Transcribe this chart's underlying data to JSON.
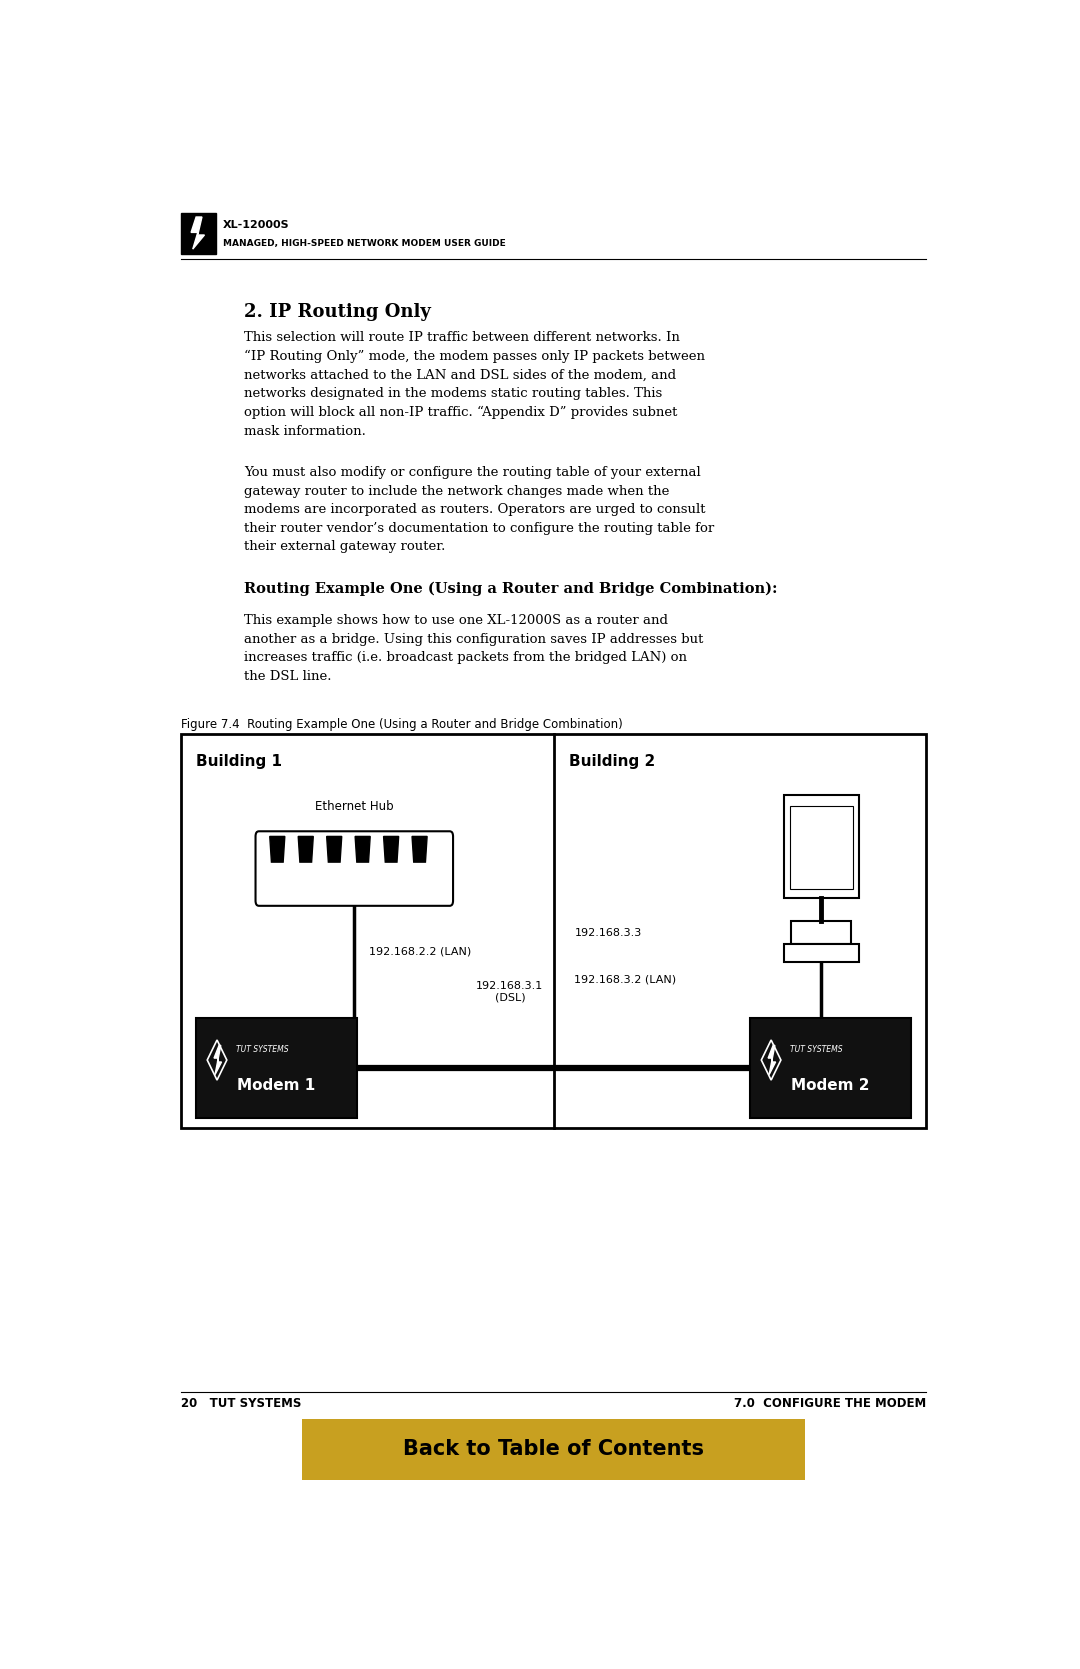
{
  "bg_color": "#ffffff",
  "page_width": 10.8,
  "page_height": 16.69,
  "header_title": "XL-12000S",
  "header_subtitle": "MANAGED, HIGH-SPEED NETWORK MODEM USER GUIDE",
  "section_title": "2. IP Routing Only",
  "para1": "This selection will route IP traffic between different networks. In\n“IP Routing Only” mode, the modem passes only IP packets between\nnetworks attached to the LAN and DSL sides of the modem, and\nnetworks designated in the modems static routing tables. This\noption will block all non-IP traffic. “Appendix D” provides subnet\nmask information.",
  "para2": "You must also modify or configure the routing table of your external\ngateway router to include the network changes made when the\nmodems are incorporated as routers. Operators are urged to consult\ntheir router vendor’s documentation to configure the routing table for\ntheir external gateway router.",
  "subsection_title": "Routing Example One (Using a Router and Bridge Combination):",
  "para3": "This example shows how to use one XL-12000S as a router and\nanother as a bridge. Using this configuration saves IP addresses but\nincreases traffic (i.e. broadcast packets from the bridged LAN) on\nthe DSL line.",
  "fig_caption": "Figure 7.4  Routing Example One (Using a Router and Bridge Combination)",
  "building1_label": "Building 1",
  "building2_label": "Building 2",
  "hub_label": "Ethernet Hub",
  "ip_lan1": "192.168.2.2 (LAN)",
  "ip_dsl": "192.168.3.1\n(DSL)",
  "ip_b2_top": "192.168.3.3",
  "ip_lan2": "192.168.3.2 (LAN)",
  "modem1_label": "Modem 1",
  "modem2_label": "Modem 2",
  "tut_systems": "TUT SYSTEMS",
  "footer_left": "20   TUT SYSTEMS",
  "footer_right": "7.0  CONFIGURE THE MODEM",
  "banner_text": "Back to Table of Contents",
  "banner_color": "#C8A020",
  "banner_text_color": "#000000",
  "modem_box_color": "#111111",
  "modem_text_color": "#ffffff"
}
